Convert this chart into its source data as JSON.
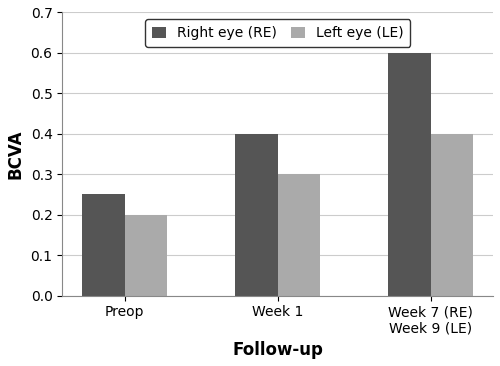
{
  "categories": [
    "Preop",
    "Week 1",
    "Week 7 (RE)\nWeek 9 (LE)"
  ],
  "re_values": [
    0.25,
    0.4,
    0.6
  ],
  "le_values": [
    0.2,
    0.3,
    0.4
  ],
  "re_color": "#555555",
  "le_color": "#aaaaaa",
  "re_label": "Right eye (RE)",
  "le_label": "Left eye (LE)",
  "ylabel": "BCVA",
  "xlabel": "Follow-up",
  "ylim": [
    0,
    0.7
  ],
  "yticks": [
    0,
    0.1,
    0.2,
    0.3,
    0.4,
    0.5,
    0.6,
    0.7
  ],
  "bar_width": 0.28,
  "axis_label_fontsize": 12,
  "tick_fontsize": 10,
  "legend_fontsize": 10,
  "background_color": "#ffffff"
}
